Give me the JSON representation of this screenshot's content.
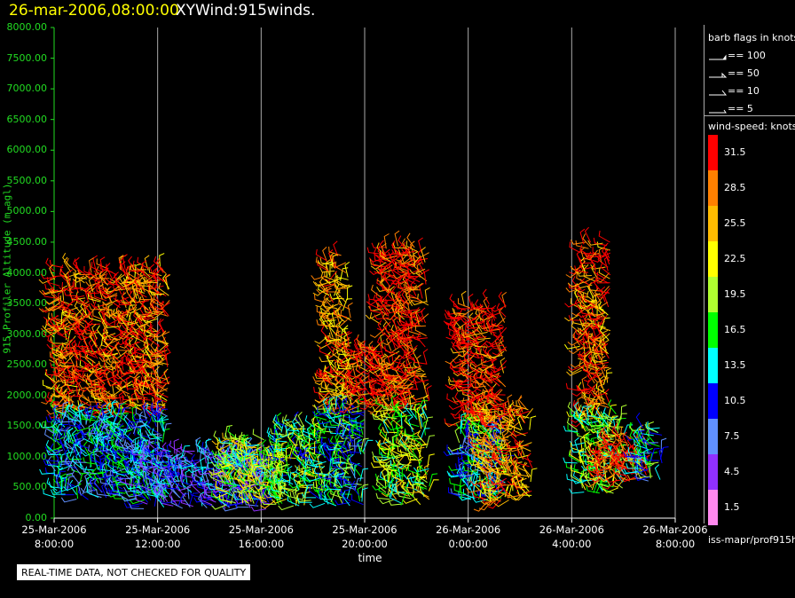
{
  "header": {
    "time": "26-mar-2006,08:00:00",
    "product": "XYWind:915winds."
  },
  "note": "REAL-TIME DATA, NOT CHECKED FOR QUALITY",
  "colors": {
    "background": "#000000",
    "axis": "#22dd22",
    "grid": "#aaaaaa",
    "title": "#ffff00"
  },
  "legend": {
    "barb_title": "barb flags in knots",
    "barb_flags": [
      {
        "label": "== 100"
      },
      {
        "label": "== 50"
      },
      {
        "label": "== 10"
      },
      {
        "label": "== 5"
      }
    ],
    "scale_title": "wind-speed: knots",
    "scale": [
      {
        "label": "31.5",
        "color": "#ff0000"
      },
      {
        "label": "28.5",
        "color": "#ff8000"
      },
      {
        "label": "25.5",
        "color": "#ffbb00"
      },
      {
        "label": "22.5",
        "color": "#ffff00"
      },
      {
        "label": "19.5",
        "color": "#b0ff30"
      },
      {
        "label": "16.5",
        "color": "#00ff00"
      },
      {
        "label": "13.5",
        "color": "#00ffff"
      },
      {
        "label": "10.5",
        "color": "#0000ff"
      },
      {
        "label": "7.5",
        "color": "#6090ff"
      },
      {
        "label": "4.5",
        "color": "#9030ff"
      },
      {
        "label": "1.5",
        "color": "#ff88ee"
      }
    ],
    "source": "iss-mapr/prof915h"
  },
  "chart_data": {
    "type": "scatter",
    "xlabel": "time",
    "ylabel": "915 Profiler Altitude (m agl)",
    "ylim": [
      0,
      8000
    ],
    "y_ticks": [
      "0.00",
      "500.00",
      "1000.00",
      "1500.00",
      "2000.00",
      "2500.00",
      "3000.00",
      "3500.00",
      "4000.00",
      "4500.00",
      "5000.00",
      "5500.00",
      "6000.00",
      "6500.00",
      "7000.00",
      "7500.00",
      "8000.00"
    ],
    "x_ticks": [
      {
        "date": "25-Mar-2006",
        "time": "8:00:00"
      },
      {
        "date": "25-Mar-2006",
        "time": "12:00:00"
      },
      {
        "date": "25-Mar-2006",
        "time": "16:00:00"
      },
      {
        "date": "25-Mar-2006",
        "time": "20:00:00"
      },
      {
        "date": "26-Mar-2006",
        "time": "0:00:00"
      },
      {
        "date": "26-Mar-2006",
        "time": "4:00:00"
      },
      {
        "date": "26-Mar-2006",
        "time": "8:00:00"
      }
    ],
    "xlim": [
      "25-Mar-2006 8:00:00",
      "26-Mar-2006 8:00:00"
    ],
    "grid": true,
    "legend_position": "right",
    "clusters": [
      {
        "t": [
          8.0,
          12.5
        ],
        "alt": [
          1700,
          4100
        ],
        "speed": 29
      },
      {
        "t": [
          8.0,
          12.5
        ],
        "alt": [
          300,
          1700
        ],
        "speed": 12
      },
      {
        "t": [
          11.0,
          16.5
        ],
        "alt": [
          150,
          1100
        ],
        "speed": 9
      },
      {
        "t": [
          14.5,
          17.0
        ],
        "alt": [
          200,
          1300
        ],
        "speed": 20
      },
      {
        "t": [
          16.5,
          18.5
        ],
        "alt": [
          200,
          1500
        ],
        "speed": 17
      },
      {
        "t": [
          18.5,
          19.5
        ],
        "alt": [
          1800,
          4300
        ],
        "speed": 27
      },
      {
        "t": [
          18.5,
          20.0
        ],
        "alt": [
          200,
          1800
        ],
        "speed": 14
      },
      {
        "t": [
          19.5,
          20.8
        ],
        "alt": [
          1800,
          2800
        ],
        "speed": 30
      },
      {
        "t": [
          20.6,
          22.5
        ],
        "alt": [
          1800,
          4450
        ],
        "speed": 31
      },
      {
        "t": [
          20.8,
          22.5
        ],
        "alt": [
          200,
          1800
        ],
        "speed": 19
      },
      {
        "t": [
          23.6,
          25.5
        ],
        "alt": [
          1500,
          3500
        ],
        "speed": 31
      },
      {
        "t": [
          23.6,
          25.5
        ],
        "alt": [
          300,
          1500
        ],
        "speed": 13
      },
      {
        "t": [
          24.5,
          26.5
        ],
        "alt": [
          250,
          1800
        ],
        "speed": 27
      },
      {
        "t": [
          28.3,
          29.5
        ],
        "alt": [
          1600,
          4500
        ],
        "speed": 29
      },
      {
        "t": [
          28.2,
          30.0
        ],
        "alt": [
          400,
          1700
        ],
        "speed": 18
      },
      {
        "t": [
          29.0,
          31.0
        ],
        "alt": [
          600,
          1300
        ],
        "speed": 31
      },
      {
        "t": [
          30.5,
          31.5
        ],
        "alt": [
          600,
          1500
        ],
        "speed": 14
      }
    ]
  }
}
